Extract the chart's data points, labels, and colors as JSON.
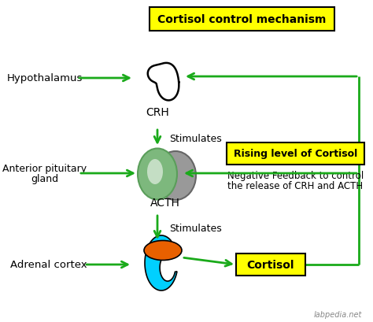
{
  "title": "Cortisol control mechanism",
  "bg_color": "#ffffff",
  "arrow_color": "#1aaa1a",
  "box_bg_yellow": "#ffff00",
  "text_color": "#000000",
  "label_hypothalamus": "Hypothalamus",
  "label_crh": "CRH",
  "label_stimulates1": "Stimulates",
  "label_anterior1": "Anterior pituitary",
  "label_anterior2": "gland",
  "label_acth": "ACTH",
  "label_stimulates2": "Stimulates",
  "label_adrenal": "Adrenal cortex",
  "label_rising": "Rising level of Cortisol",
  "label_negative1": "Negative Feedback to control",
  "label_negative2": "the release of CRH and ACTH",
  "label_cortisol": "Cortisol",
  "label_credit": "labpedia.net",
  "green_gland": "#7db87d",
  "green_gland_dark": "#5a9e5a",
  "gray_gland": "#999999",
  "orange_color": "#e86000",
  "cyan_color": "#00d0ff",
  "black": "#000000",
  "white": "#ffffff",
  "gray_text": "#888888"
}
